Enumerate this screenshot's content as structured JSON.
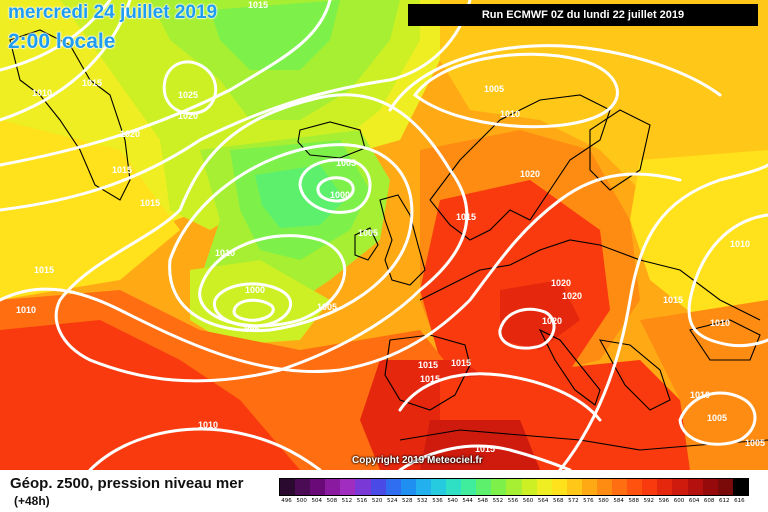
{
  "header": {
    "date": "mercredi 24 juillet 2019",
    "local_time": "2:00 locale",
    "run": "Run ECMWF 0Z du lundi 22 juillet 2019"
  },
  "copyright": "Copyright 2019 Meteociel.fr",
  "legend": {
    "title": "Géop. z500, pression niveau mer",
    "lead": "(+48h)",
    "scale": [
      "496",
      "500",
      "504",
      "508",
      "512",
      "516",
      "520",
      "524",
      "528",
      "532",
      "536",
      "540",
      "544",
      "548",
      "552",
      "556",
      "560",
      "564",
      "568",
      "572",
      "576",
      "580",
      "584",
      "588",
      "592",
      "596",
      "600",
      "604",
      "608",
      "612",
      "616"
    ],
    "colors": [
      "#2a0a2e",
      "#4b0b55",
      "#6a0a78",
      "#8a1aa0",
      "#a02cc0",
      "#7a39d6",
      "#4a4ae6",
      "#2f6ef0",
      "#1f8ff2",
      "#22b0ef",
      "#26cbe0",
      "#2fe0c4",
      "#40ed9c",
      "#5cf06c",
      "#7ef04a",
      "#a6ef33",
      "#ccf024",
      "#eeee22",
      "#ffe11c",
      "#ffc818",
      "#ffaa15",
      "#ff8c12",
      "#ff6e10",
      "#ff520f",
      "#f83a0e",
      "#e5270e",
      "#cf1a0e",
      "#b3100e",
      "#960a0c",
      "#7a0a0a",
      "#000000"
    ]
  },
  "isobars": [
    "1015",
    "1010",
    "1015",
    "1025",
    "1020",
    "1020",
    "1015",
    "1015",
    "1015",
    "1010",
    "1005",
    "1000",
    "1005",
    "1010",
    "1000",
    "995",
    "1005",
    "1005",
    "1010",
    "1015",
    "1020",
    "1020",
    "1020",
    "1015",
    "1015",
    "1015",
    "1015",
    "1020",
    "1015",
    "1010",
    "1010",
    "1010",
    "1005",
    "1005",
    "1010"
  ],
  "colors": {
    "header_text": "#1f9df0",
    "isobar": "#ffffff",
    "coast": "#000000"
  }
}
